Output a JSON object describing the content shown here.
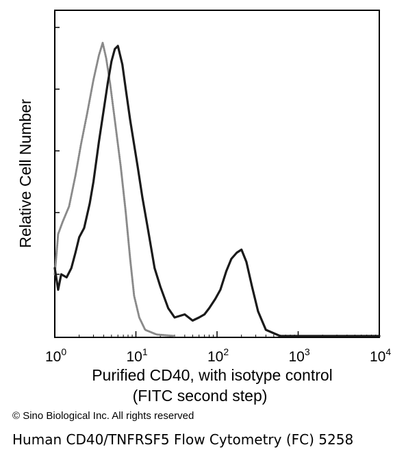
{
  "chart_data": {
    "type": "area",
    "ylabel": "Relative Cell Number",
    "xlabel": "Purified CD40, with isotype control",
    "xlabel_line2": "(FITC second step)",
    "x_scale": "log",
    "xlim": [
      1,
      10000
    ],
    "x_ticks": [
      {
        "base": "10",
        "exp": "0"
      },
      {
        "base": "10",
        "exp": "1"
      },
      {
        "base": "10",
        "exp": "2"
      },
      {
        "base": "10",
        "exp": "3"
      },
      {
        "base": "10",
        "exp": "4"
      }
    ],
    "ylim": [
      0,
      100
    ],
    "y_tick_count": 5,
    "grid": false,
    "series": [
      {
        "style": "dotted",
        "color": "#8a8a8a",
        "points": [
          [
            1.0,
            20
          ],
          [
            1.1,
            33
          ],
          [
            1.25,
            37
          ],
          [
            1.5,
            42
          ],
          [
            1.8,
            52
          ],
          [
            2.1,
            62
          ],
          [
            2.5,
            72
          ],
          [
            3.0,
            83
          ],
          [
            3.5,
            91
          ],
          [
            3.9,
            95
          ],
          [
            4.3,
            90
          ],
          [
            4.8,
            82
          ],
          [
            5.5,
            70
          ],
          [
            6.5,
            55
          ],
          [
            7.5,
            40
          ],
          [
            8.5,
            25
          ],
          [
            9.5,
            13
          ],
          [
            11,
            6
          ],
          [
            13,
            2
          ],
          [
            18,
            0.5
          ],
          [
            30,
            0
          ]
        ]
      },
      {
        "style": "solid",
        "color": "#1a1a1a",
        "points": [
          [
            1.0,
            22
          ],
          [
            1.1,
            15
          ],
          [
            1.2,
            20
          ],
          [
            1.4,
            19
          ],
          [
            1.6,
            22
          ],
          [
            1.8,
            27
          ],
          [
            2.0,
            32
          ],
          [
            2.3,
            35
          ],
          [
            2.7,
            43
          ],
          [
            3.0,
            50
          ],
          [
            3.5,
            63
          ],
          [
            4.0,
            73
          ],
          [
            4.5,
            82
          ],
          [
            5.0,
            89
          ],
          [
            5.5,
            93
          ],
          [
            6.0,
            94
          ],
          [
            6.8,
            88
          ],
          [
            7.5,
            80
          ],
          [
            8.5,
            70
          ],
          [
            9.5,
            62
          ],
          [
            10.5,
            55
          ],
          [
            12,
            45
          ],
          [
            14,
            35
          ],
          [
            17,
            22
          ],
          [
            20,
            16
          ],
          [
            25,
            9
          ],
          [
            30,
            6
          ],
          [
            40,
            7
          ],
          [
            50,
            5
          ],
          [
            60,
            6
          ],
          [
            70,
            7
          ],
          [
            80,
            9
          ],
          [
            95,
            12
          ],
          [
            110,
            15
          ],
          [
            130,
            21
          ],
          [
            150,
            25
          ],
          [
            175,
            27
          ],
          [
            200,
            28
          ],
          [
            230,
            24
          ],
          [
            270,
            16
          ],
          [
            320,
            8
          ],
          [
            400,
            2
          ],
          [
            600,
            0
          ],
          [
            10000,
            0
          ]
        ]
      }
    ]
  },
  "copyright": "© Sino Biological Inc. All rights reserved",
  "caption": "Human CD40/TNFRSF5 Flow Cytometry (FC) 5258"
}
